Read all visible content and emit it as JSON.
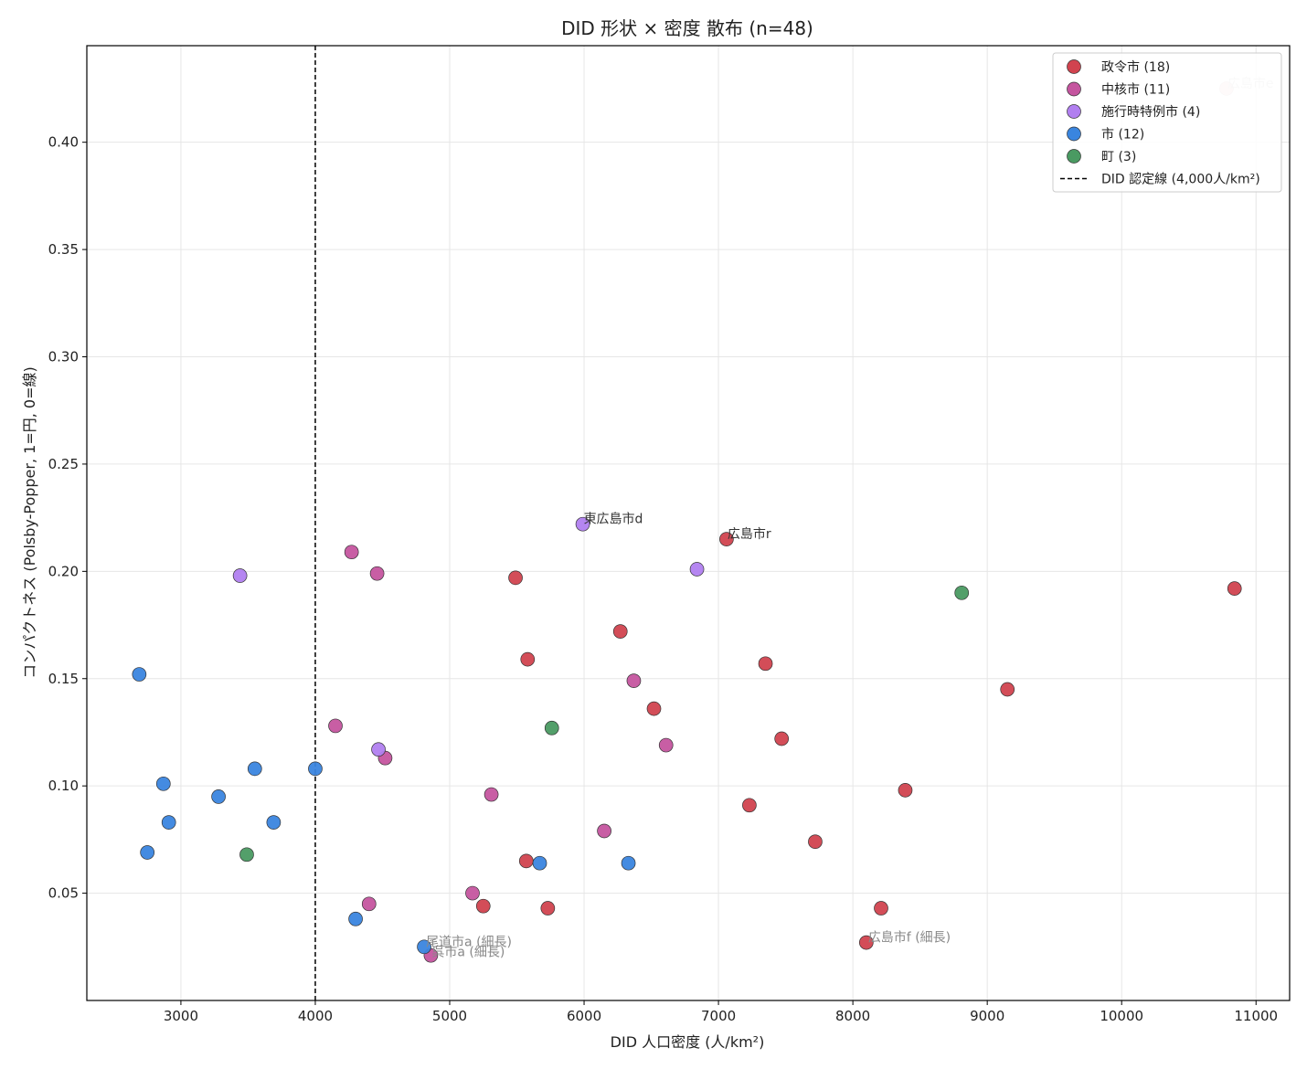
{
  "chart_data": {
    "type": "scatter",
    "title": "DID 形状 × 密度 散布 (n=48)",
    "xlabel": "DID 人口密度 (人/km²)",
    "ylabel": "コンパクトネス (Polsby-Popper, 1=円, 0=線)",
    "xlim": [
      2300,
      11250
    ],
    "ylim": [
      0.0,
      0.445
    ],
    "xticks": [
      3000,
      4000,
      5000,
      6000,
      7000,
      8000,
      9000,
      10000,
      11000
    ],
    "yticks": [
      0.05,
      0.1,
      0.15,
      0.2,
      0.25,
      0.3,
      0.35,
      0.4
    ],
    "xtick_labels": [
      "3000",
      "4000",
      "5000",
      "6000",
      "7000",
      "8000",
      "9000",
      "10000",
      "11000"
    ],
    "ytick_labels": [
      "0.05",
      "0.10",
      "0.15",
      "0.20",
      "0.25",
      "0.30",
      "0.35",
      "0.40"
    ],
    "grid": true,
    "legend_position": "top-right",
    "reference_line": {
      "x": 4000,
      "label": "DID 認定線 (4,000人/km²)",
      "style": "dashed",
      "color": "#000000"
    },
    "series": [
      {
        "name": "政令市 (18)",
        "color": "#d1434f",
        "points": [
          [
            10780,
            0.425
          ],
          [
            10840,
            0.192
          ],
          [
            9150,
            0.145
          ],
          [
            8390,
            0.098
          ],
          [
            8210,
            0.043
          ],
          [
            8100,
            0.027
          ],
          [
            7720,
            0.074
          ],
          [
            7470,
            0.122
          ],
          [
            7350,
            0.157
          ],
          [
            7230,
            0.091
          ],
          [
            7060,
            0.215
          ],
          [
            6520,
            0.136
          ],
          [
            6270,
            0.172
          ],
          [
            5730,
            0.043
          ],
          [
            5580,
            0.159
          ],
          [
            5570,
            0.065
          ],
          [
            5490,
            0.197
          ],
          [
            5250,
            0.044
          ]
        ]
      },
      {
        "name": "中核市 (11)",
        "color": "#c5559f",
        "points": [
          [
            4270,
            0.209
          ],
          [
            4460,
            0.199
          ],
          [
            4150,
            0.128
          ],
          [
            4520,
            0.113
          ],
          [
            4400,
            0.045
          ],
          [
            4860,
            0.021
          ],
          [
            5170,
            0.05
          ],
          [
            5310,
            0.096
          ],
          [
            6150,
            0.079
          ],
          [
            6370,
            0.149
          ],
          [
            6610,
            0.119
          ]
        ]
      },
      {
        "name": "施行時特例市 (4)",
        "color": "#b17ff0",
        "points": [
          [
            3440,
            0.198
          ],
          [
            4470,
            0.117
          ],
          [
            5990,
            0.222
          ],
          [
            6840,
            0.201
          ]
        ]
      },
      {
        "name": "市 (12)",
        "color": "#3a85df",
        "points": [
          [
            2690,
            0.152
          ],
          [
            2750,
            0.069
          ],
          [
            2870,
            0.101
          ],
          [
            2910,
            0.083
          ],
          [
            3280,
            0.095
          ],
          [
            3550,
            0.108
          ],
          [
            3690,
            0.083
          ],
          [
            4000,
            0.108
          ],
          [
            4300,
            0.038
          ],
          [
            4810,
            0.025
          ],
          [
            5670,
            0.064
          ],
          [
            6330,
            0.064
          ]
        ]
      },
      {
        "name": "町 (3)",
        "color": "#4a9a62",
        "points": [
          [
            3490,
            0.068
          ],
          [
            5760,
            0.127
          ],
          [
            8810,
            0.19
          ]
        ]
      }
    ],
    "annotations": [
      {
        "text": "広島市e",
        "x": 10780,
        "y": 0.425,
        "color": "#d8d8d8"
      },
      {
        "text": "東広島市d",
        "x": 5990,
        "y": 0.222,
        "color": "#333333"
      },
      {
        "text": "広島市r",
        "x": 7060,
        "y": 0.215,
        "color": "#333333"
      },
      {
        "text": "尾道市a (細長)",
        "x": 4810,
        "y": 0.025,
        "color": "#888888"
      },
      {
        "text": "呉市a (細長)",
        "x": 4860,
        "y": 0.021,
        "color": "#888888"
      },
      {
        "text": "広島市f (細長)",
        "x": 8100,
        "y": 0.027,
        "color": "#888888"
      }
    ]
  }
}
